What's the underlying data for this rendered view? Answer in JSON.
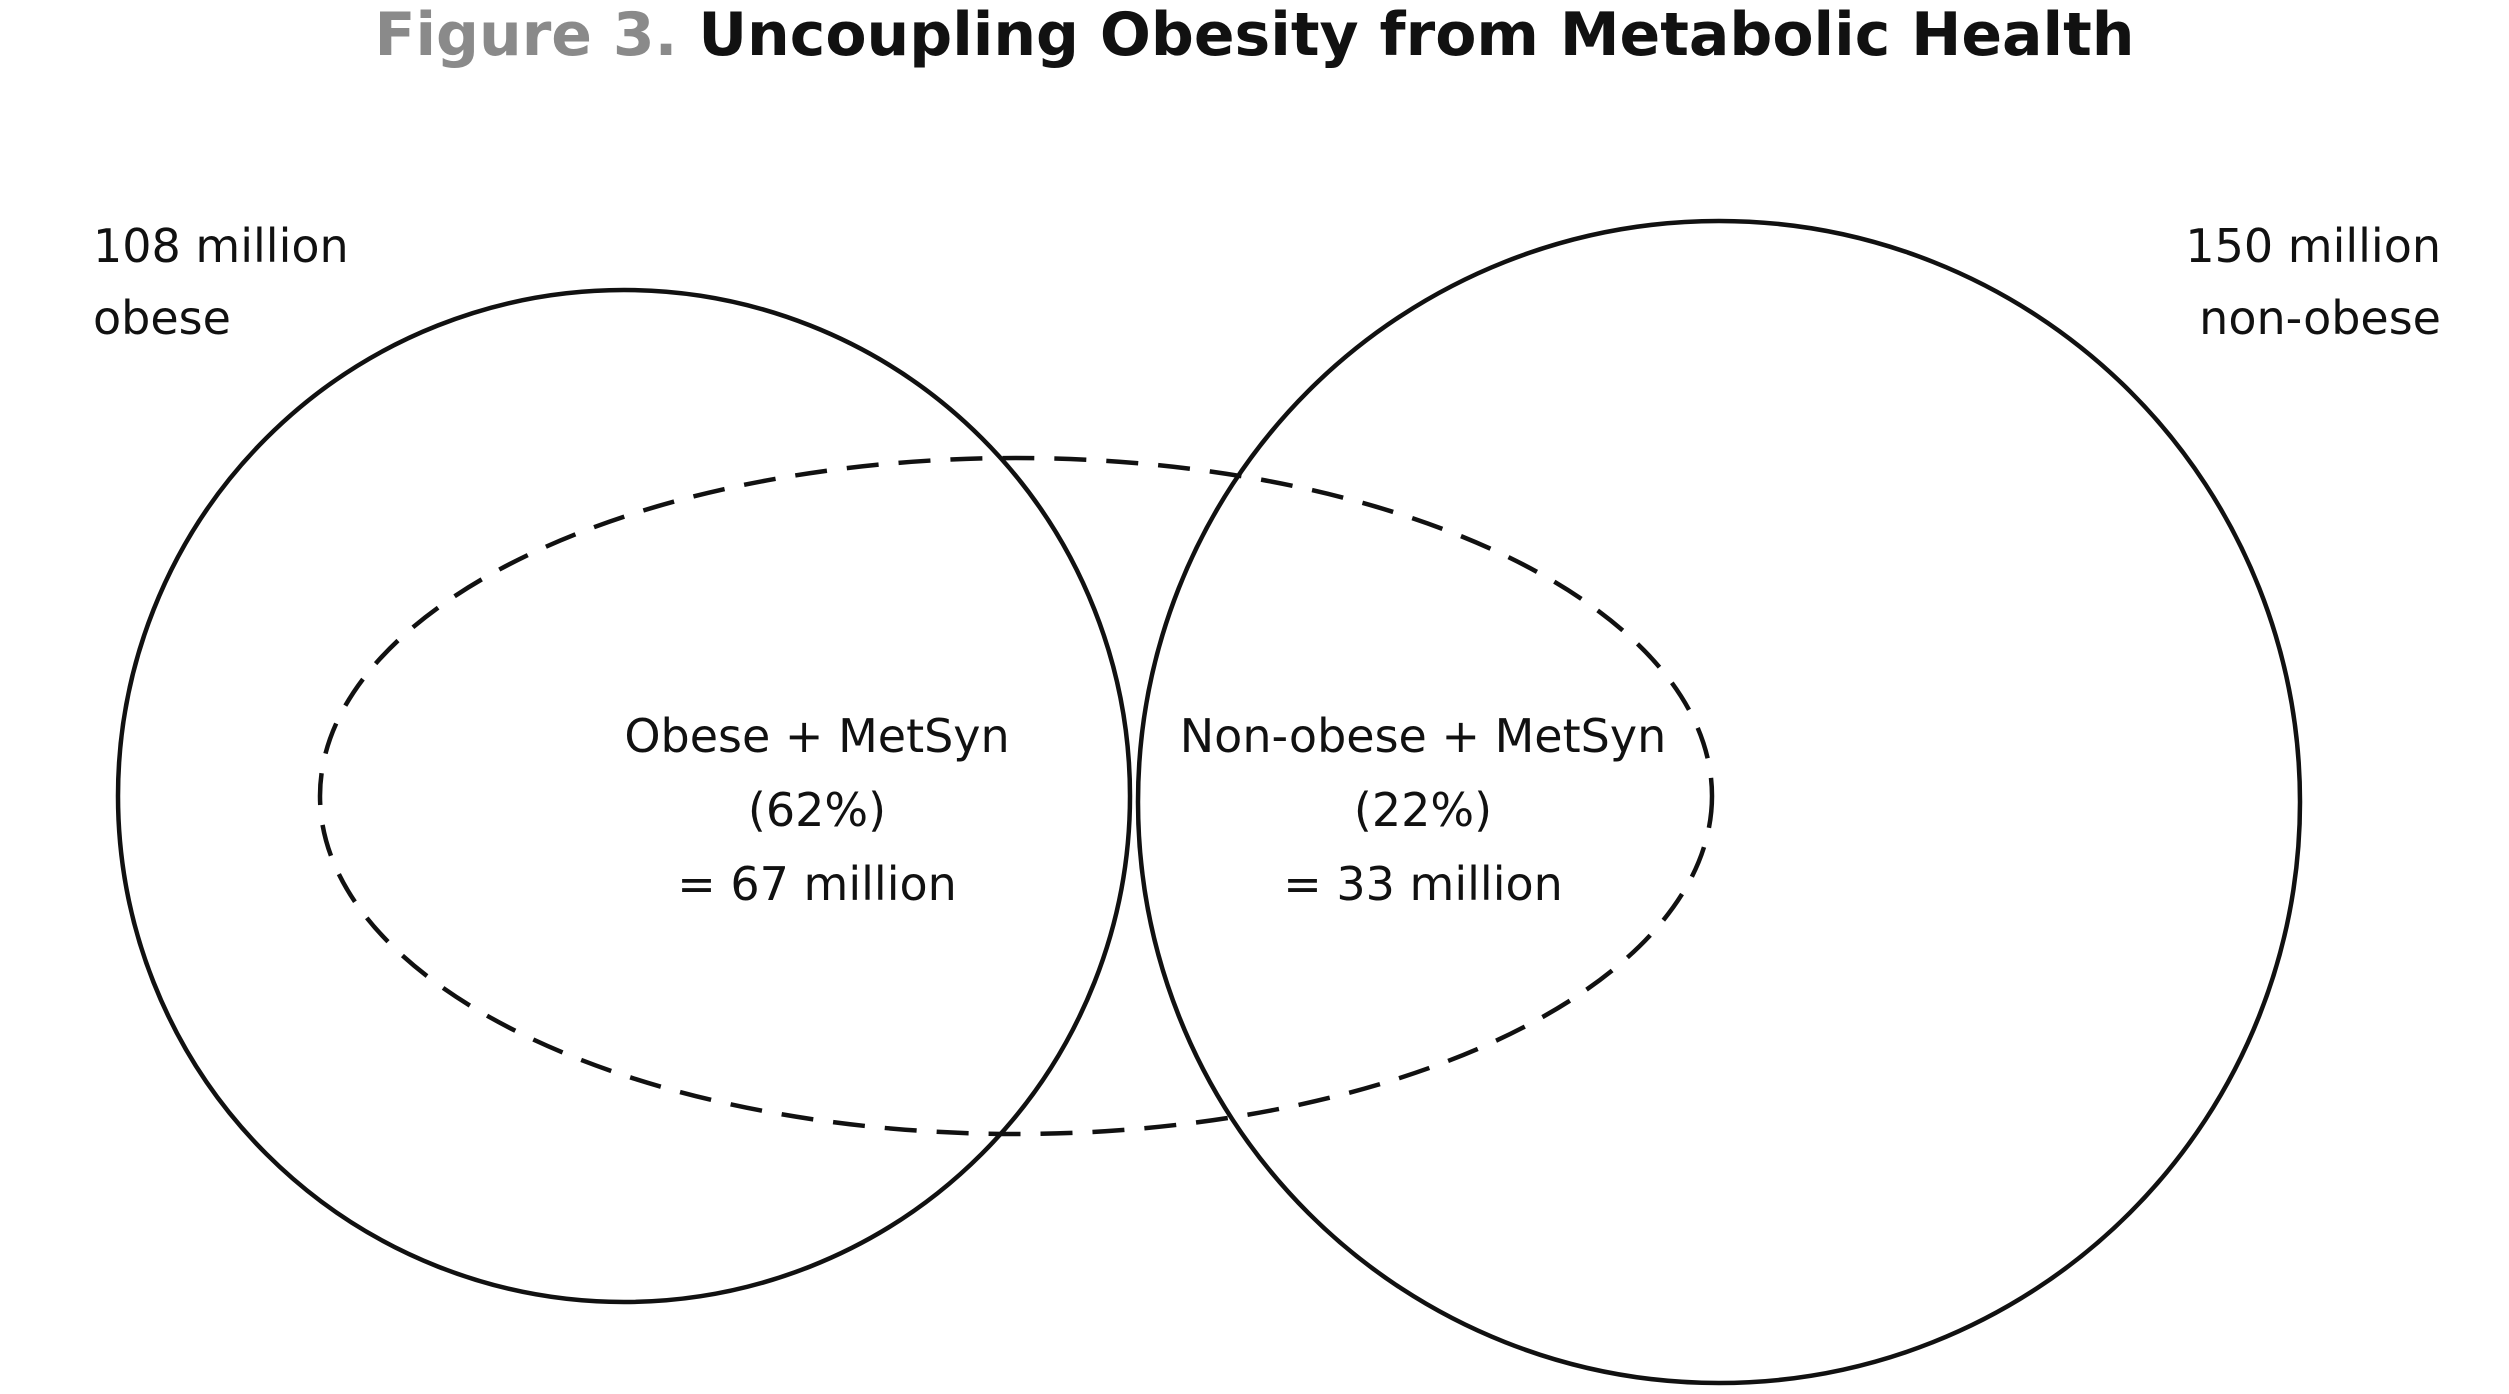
{
  "title": {
    "prefix": "Figure 3.",
    "text": "Uncoupling Obesity from Metabolic Health"
  },
  "sets": {
    "obese": {
      "line1": "108 million",
      "line2": "obese"
    },
    "non_obese": {
      "line1": "150 million",
      "line2": "non-obese"
    }
  },
  "regions": {
    "obese_metsyn": {
      "label": "Obese + MetSyn",
      "percent": "(62%)",
      "count": "= 67 million"
    },
    "non_obese_metsyn": {
      "label": "Non-obese + MetSyn",
      "percent": "(22%)",
      "count": "= 33 million"
    }
  },
  "colors": {
    "stroke": "#111111",
    "title_prefix": "#8a8a8a"
  },
  "line_styles": {
    "obese_circle": "solid",
    "non_obese_circle": "solid",
    "metsyn_ellipse": "dashed"
  }
}
